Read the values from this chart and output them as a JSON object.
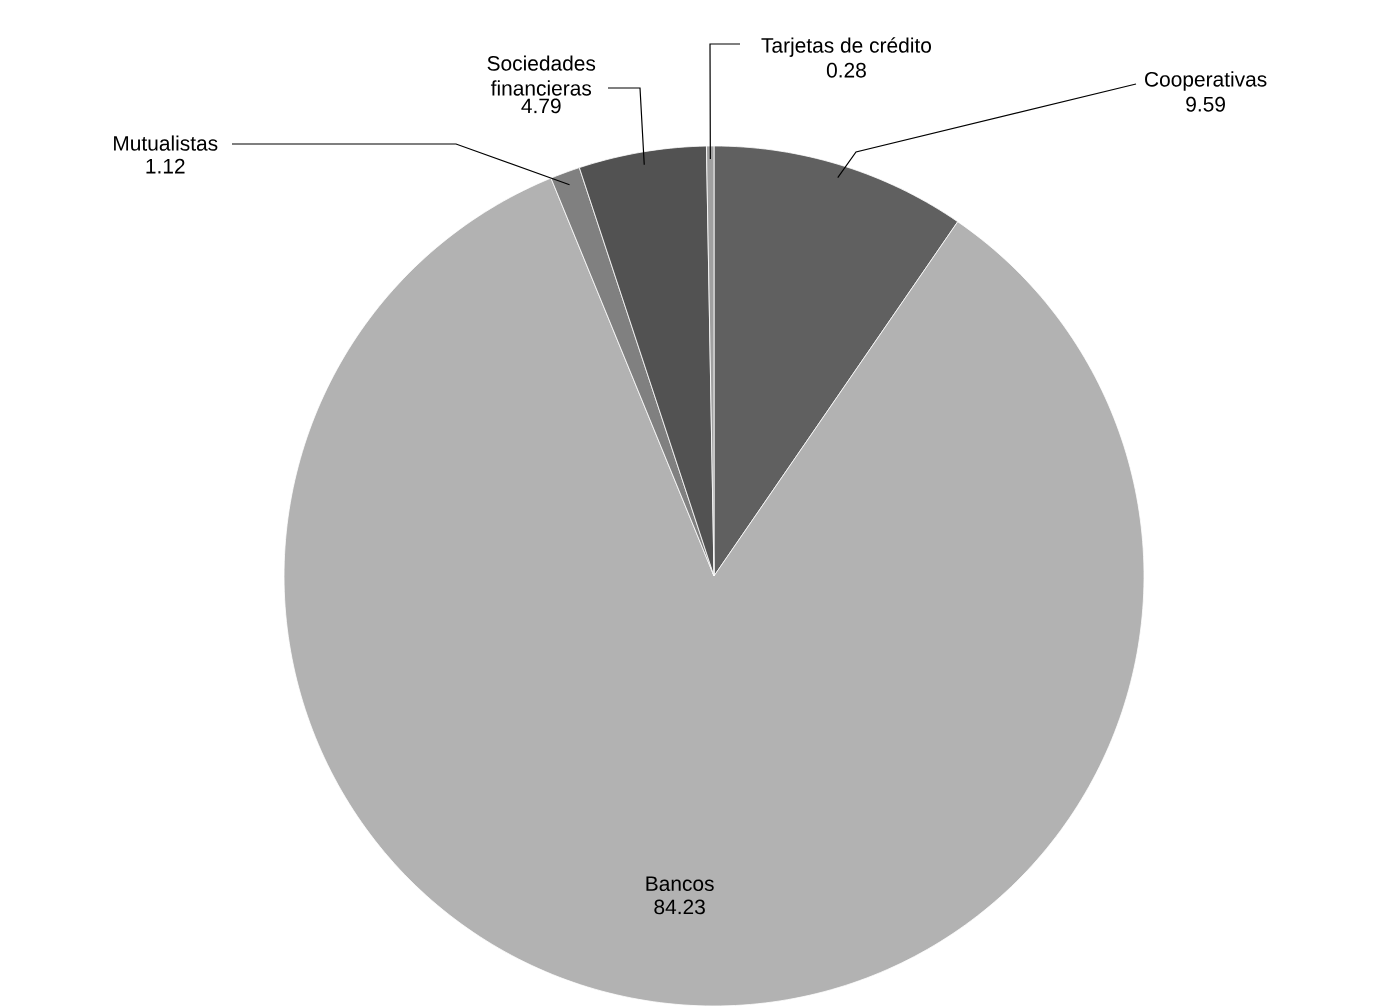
{
  "chart_data": {
    "type": "pie",
    "categories": [
      "Cooperativas",
      "Bancos",
      "Mutualistas",
      "Sociedades financieras",
      "Tarjetas de crédito"
    ],
    "values": [
      9.59,
      84.23,
      1.12,
      4.79,
      0.28
    ],
    "colors": [
      "#606060",
      "#b2b2b2",
      "#808080",
      "#525252",
      "#a0a0a0"
    ],
    "data_labels": true
  }
}
